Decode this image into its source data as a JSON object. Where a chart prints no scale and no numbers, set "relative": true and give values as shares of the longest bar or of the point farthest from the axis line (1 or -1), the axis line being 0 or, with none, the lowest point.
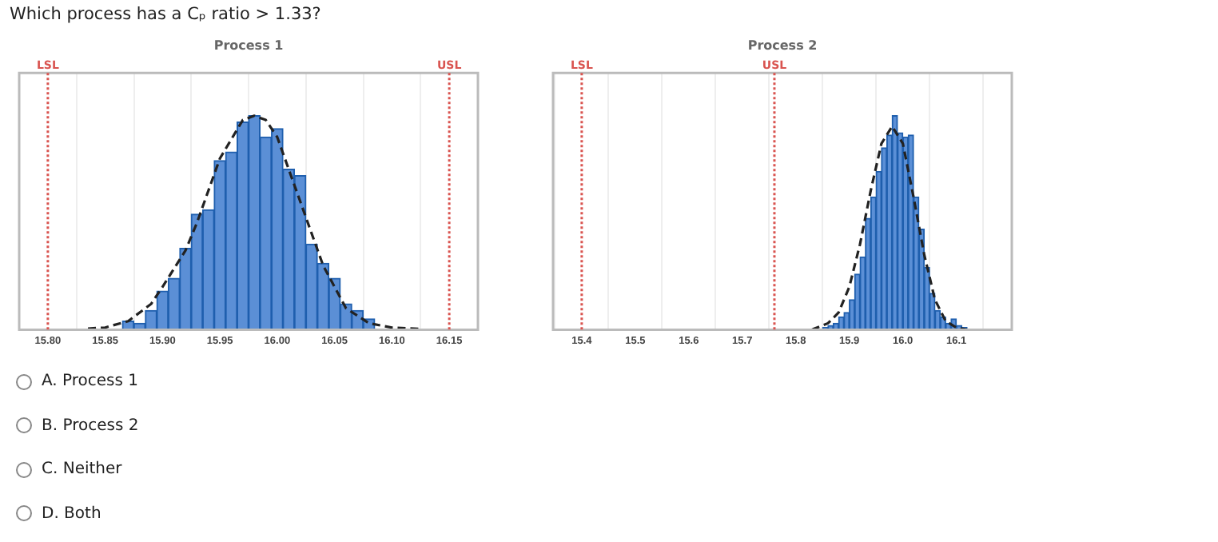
{
  "chart_data": [
    {
      "type": "histogram",
      "title": "Process 1",
      "relative": true,
      "color": "#5b8fd6",
      "bins": [
        15.865,
        15.875,
        15.885,
        15.895,
        15.905,
        15.915,
        15.925,
        15.935,
        15.945,
        15.955,
        15.965,
        15.975,
        15.985,
        15.995,
        16.005,
        16.015,
        16.025,
        16.035,
        16.045,
        16.055,
        16.065,
        16.075,
        16.085
      ],
      "values": [
        0.04,
        0.03,
        0.09,
        0.18,
        0.24,
        0.38,
        0.54,
        0.56,
        0.79,
        0.83,
        0.97,
        1,
        0.9,
        0.94,
        0.75,
        0.72,
        0.4,
        0.31,
        0.24,
        0.12,
        0.09,
        0.05
      ],
      "series": [
        {
          "type": "line",
          "color": "#222222",
          "line_style": "dashed",
          "x": [
            15.835,
            15.85,
            15.87,
            15.89,
            15.9,
            15.92,
            15.93,
            15.95,
            15.97,
            15.98,
            15.99,
            16.0,
            16.02,
            16.04,
            16.06,
            16.08,
            16.1,
            16.125
          ],
          "values": [
            0.005,
            0.01,
            0.04,
            0.12,
            0.2,
            0.37,
            0.5,
            0.8,
            0.98,
            1,
            0.98,
            0.9,
            0.6,
            0.3,
            0.1,
            0.03,
            0.01,
            0.003
          ]
        }
      ],
      "xlim": [
        15.8,
        16.15
      ],
      "xticks": [
        {
          "value": 15.8,
          "label": "15.80"
        },
        15.85,
        {
          "value": 15.9,
          "label": "15.90"
        },
        15.95,
        {
          "value": 16.0,
          "label": "16.00"
        },
        16.05,
        {
          "value": 16.1,
          "label": "16.10"
        },
        16.15
      ],
      "ref_lines": [
        {
          "axis": "x",
          "value": 15.8,
          "label": "LSL",
          "color": "#d9534f",
          "line_style": "dotted"
        },
        {
          "axis": "x",
          "value": 16.15,
          "label": "USL",
          "color": "#d9534f",
          "line_style": "dotted"
        }
      ],
      "grid": "x",
      "annotations": [
        "Which process has a Cₚ ratio > 1.33?",
        "A. Process 1",
        "B. Process 2",
        "C. Neither",
        "D. Both"
      ]
    },
    {
      "type": "histogram",
      "title": "Process 2",
      "relative": true,
      "color": "#5b8fd6",
      "bins": [
        15.85,
        15.86,
        15.87,
        15.88,
        15.89,
        15.9,
        15.91,
        15.92,
        15.93,
        15.94,
        15.95,
        15.96,
        15.97,
        15.98,
        15.99,
        16.0,
        16.01,
        16.02,
        16.03,
        16.04,
        16.05,
        16.06,
        16.07,
        16.08,
        16.09,
        16.1,
        16.11,
        16.12
      ],
      "values": [
        0.01,
        0.02,
        0.03,
        0.06,
        0.08,
        0.14,
        0.26,
        0.34,
        0.52,
        0.62,
        0.74,
        0.85,
        0.91,
        1,
        0.92,
        0.9,
        0.91,
        0.62,
        0.47,
        0.29,
        0.17,
        0.09,
        0.06,
        0.03,
        0.05,
        0.02,
        0.01
      ],
      "series": [
        {
          "type": "line",
          "color": "#222222",
          "line_style": "dashed",
          "x": [
            15.83,
            15.86,
            15.88,
            15.9,
            15.92,
            15.94,
            15.96,
            15.98,
            16.0,
            16.02,
            16.04,
            16.06,
            16.08,
            16.1,
            16.12
          ],
          "values": [
            0.0,
            0.03,
            0.08,
            0.2,
            0.4,
            0.65,
            0.87,
            0.95,
            0.87,
            0.62,
            0.35,
            0.14,
            0.04,
            0.01,
            0.0
          ]
        }
      ],
      "xlim": [
        15.4,
        16.15
      ],
      "xticks": [
        15.4,
        15.5,
        15.6,
        15.7,
        15.8,
        15.9,
        {
          "value": 16.0,
          "label": "16.0"
        },
        16.1
      ],
      "ref_lines": [
        {
          "axis": "x",
          "value": 15.4,
          "label": "LSL",
          "color": "#d9534f",
          "line_style": "dotted"
        },
        {
          "axis": "x",
          "value": 15.76,
          "label": "USL",
          "color": "#d9534f",
          "line_style": "dotted"
        }
      ],
      "grid": "x"
    }
  ]
}
